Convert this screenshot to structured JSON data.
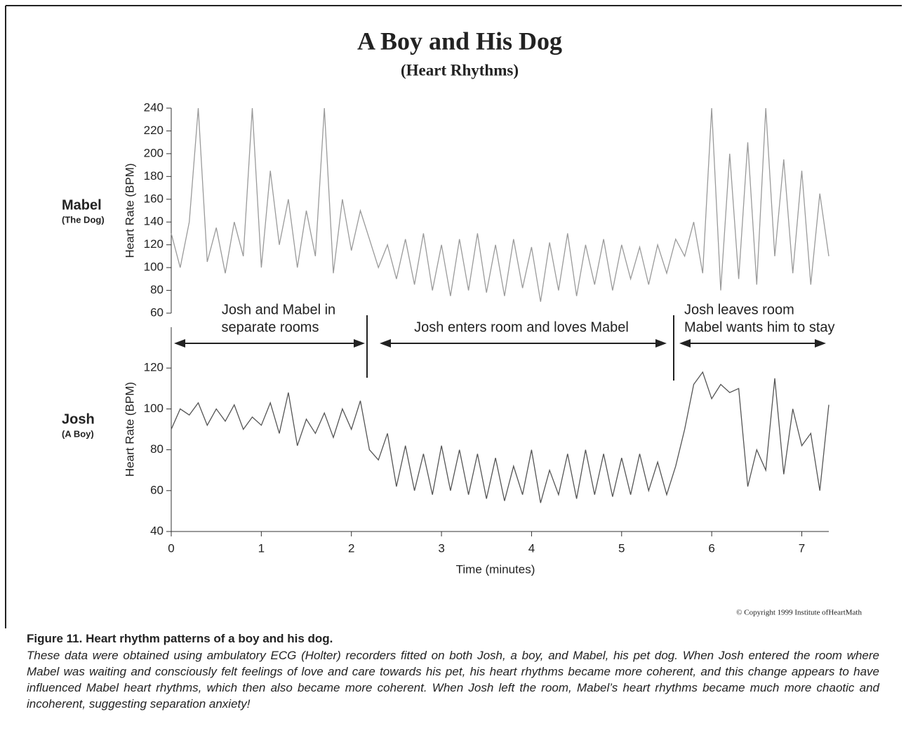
{
  "title": "A Boy and His Dog",
  "subtitle": "(Heart Rhythms)",
  "copyright": "© Copyright 1999 Institute ofHeartMath",
  "caption": {
    "title": "Figure 11. Heart rhythm patterns of a boy and his dog.",
    "text": "These data were obtained using ambulatory ECG (Holter) recorders fitted on both Josh, a boy, and Mabel, his pet dog. When Josh entered the room where Mabel was waiting and consciously felt feelings of love and care towards his pet, his heart rhythms became more coherent, and this change appears to have influenced Mabel heart rhythms, which then also became more coherent. When Josh left the room, Mabel’s heart rhythms became much more chaotic and incoherent, suggesting separation anxiety!"
  },
  "chart_data": [
    {
      "type": "line",
      "name": "Mabel",
      "subname": "(The Dog)",
      "y_label": "Heart Rate (BPM)",
      "color": "#9a9a9a",
      "x": [
        0,
        0.1,
        0.2,
        0.3,
        0.4,
        0.5,
        0.6,
        0.7,
        0.8,
        0.9,
        1.0,
        1.1,
        1.2,
        1.3,
        1.4,
        1.5,
        1.6,
        1.7,
        1.8,
        1.9,
        2.0,
        2.1,
        2.2,
        2.3,
        2.4,
        2.5,
        2.6,
        2.7,
        2.8,
        2.9,
        3.0,
        3.1,
        3.2,
        3.3,
        3.4,
        3.5,
        3.6,
        3.7,
        3.8,
        3.9,
        4.0,
        4.1,
        4.2,
        4.3,
        4.4,
        4.5,
        4.6,
        4.7,
        4.8,
        4.9,
        5.0,
        5.1,
        5.2,
        5.3,
        5.4,
        5.5,
        5.6,
        5.7,
        5.8,
        5.9,
        6.0,
        6.1,
        6.2,
        6.3,
        6.4,
        6.5,
        6.6,
        6.7,
        6.8,
        6.9,
        7.0,
        7.1,
        7.2,
        7.3
      ],
      "values": [
        130,
        100,
        140,
        240,
        105,
        135,
        95,
        140,
        110,
        240,
        100,
        185,
        120,
        160,
        100,
        150,
        110,
        240,
        95,
        160,
        115,
        150,
        125,
        100,
        120,
        90,
        125,
        85,
        130,
        80,
        120,
        75,
        125,
        80,
        130,
        78,
        120,
        75,
        125,
        82,
        118,
        70,
        122,
        80,
        130,
        75,
        120,
        85,
        125,
        80,
        120,
        90,
        118,
        85,
        120,
        95,
        125,
        110,
        140,
        95,
        240,
        80,
        200,
        90,
        210,
        85,
        240,
        110,
        195,
        95,
        185,
        85,
        165,
        110
      ],
      "xlim": [
        0,
        7.3
      ],
      "ylim": [
        60,
        240
      ],
      "yticks": [
        60,
        80,
        100,
        120,
        140,
        160,
        180,
        200,
        220,
        240
      ],
      "annotations": [
        "Josh and Mabel in",
        "separate rooms",
        "Josh enters room and loves Mabel",
        "Josh leaves room",
        "Mabel wants him to stay"
      ]
    },
    {
      "type": "line",
      "name": "Josh",
      "subname": "(A Boy)",
      "y_label": "Heart Rate (BPM)",
      "x_label": "Time (minutes)",
      "color": "#555555",
      "x": [
        0,
        0.1,
        0.2,
        0.3,
        0.4,
        0.5,
        0.6,
        0.7,
        0.8,
        0.9,
        1.0,
        1.1,
        1.2,
        1.3,
        1.4,
        1.5,
        1.6,
        1.7,
        1.8,
        1.9,
        2.0,
        2.1,
        2.2,
        2.3,
        2.4,
        2.5,
        2.6,
        2.7,
        2.8,
        2.9,
        3.0,
        3.1,
        3.2,
        3.3,
        3.4,
        3.5,
        3.6,
        3.7,
        3.8,
        3.9,
        4.0,
        4.1,
        4.2,
        4.3,
        4.4,
        4.5,
        4.6,
        4.7,
        4.8,
        4.9,
        5.0,
        5.1,
        5.2,
        5.3,
        5.4,
        5.5,
        5.6,
        5.7,
        5.8,
        5.9,
        6.0,
        6.1,
        6.2,
        6.3,
        6.4,
        6.5,
        6.6,
        6.7,
        6.8,
        6.9,
        7.0,
        7.1,
        7.2,
        7.3
      ],
      "values": [
        90,
        100,
        97,
        103,
        92,
        100,
        94,
        102,
        90,
        96,
        92,
        103,
        88,
        108,
        82,
        95,
        88,
        98,
        86,
        100,
        90,
        104,
        80,
        75,
        88,
        62,
        82,
        60,
        78,
        58,
        82,
        60,
        80,
        58,
        78,
        56,
        76,
        55,
        72,
        58,
        80,
        54,
        70,
        58,
        78,
        56,
        80,
        58,
        78,
        57,
        76,
        58,
        78,
        60,
        74,
        58,
        72,
        90,
        112,
        118,
        105,
        112,
        108,
        110,
        62,
        80,
        70,
        115,
        68,
        100,
        82,
        88,
        60,
        102
      ],
      "xlim": [
        0,
        7.3
      ],
      "ylim": [
        40,
        140
      ],
      "yticks": [
        40,
        60,
        80,
        100,
        120
      ],
      "xticks": [
        0,
        1,
        2,
        3,
        4,
        5,
        6,
        7
      ]
    }
  ]
}
